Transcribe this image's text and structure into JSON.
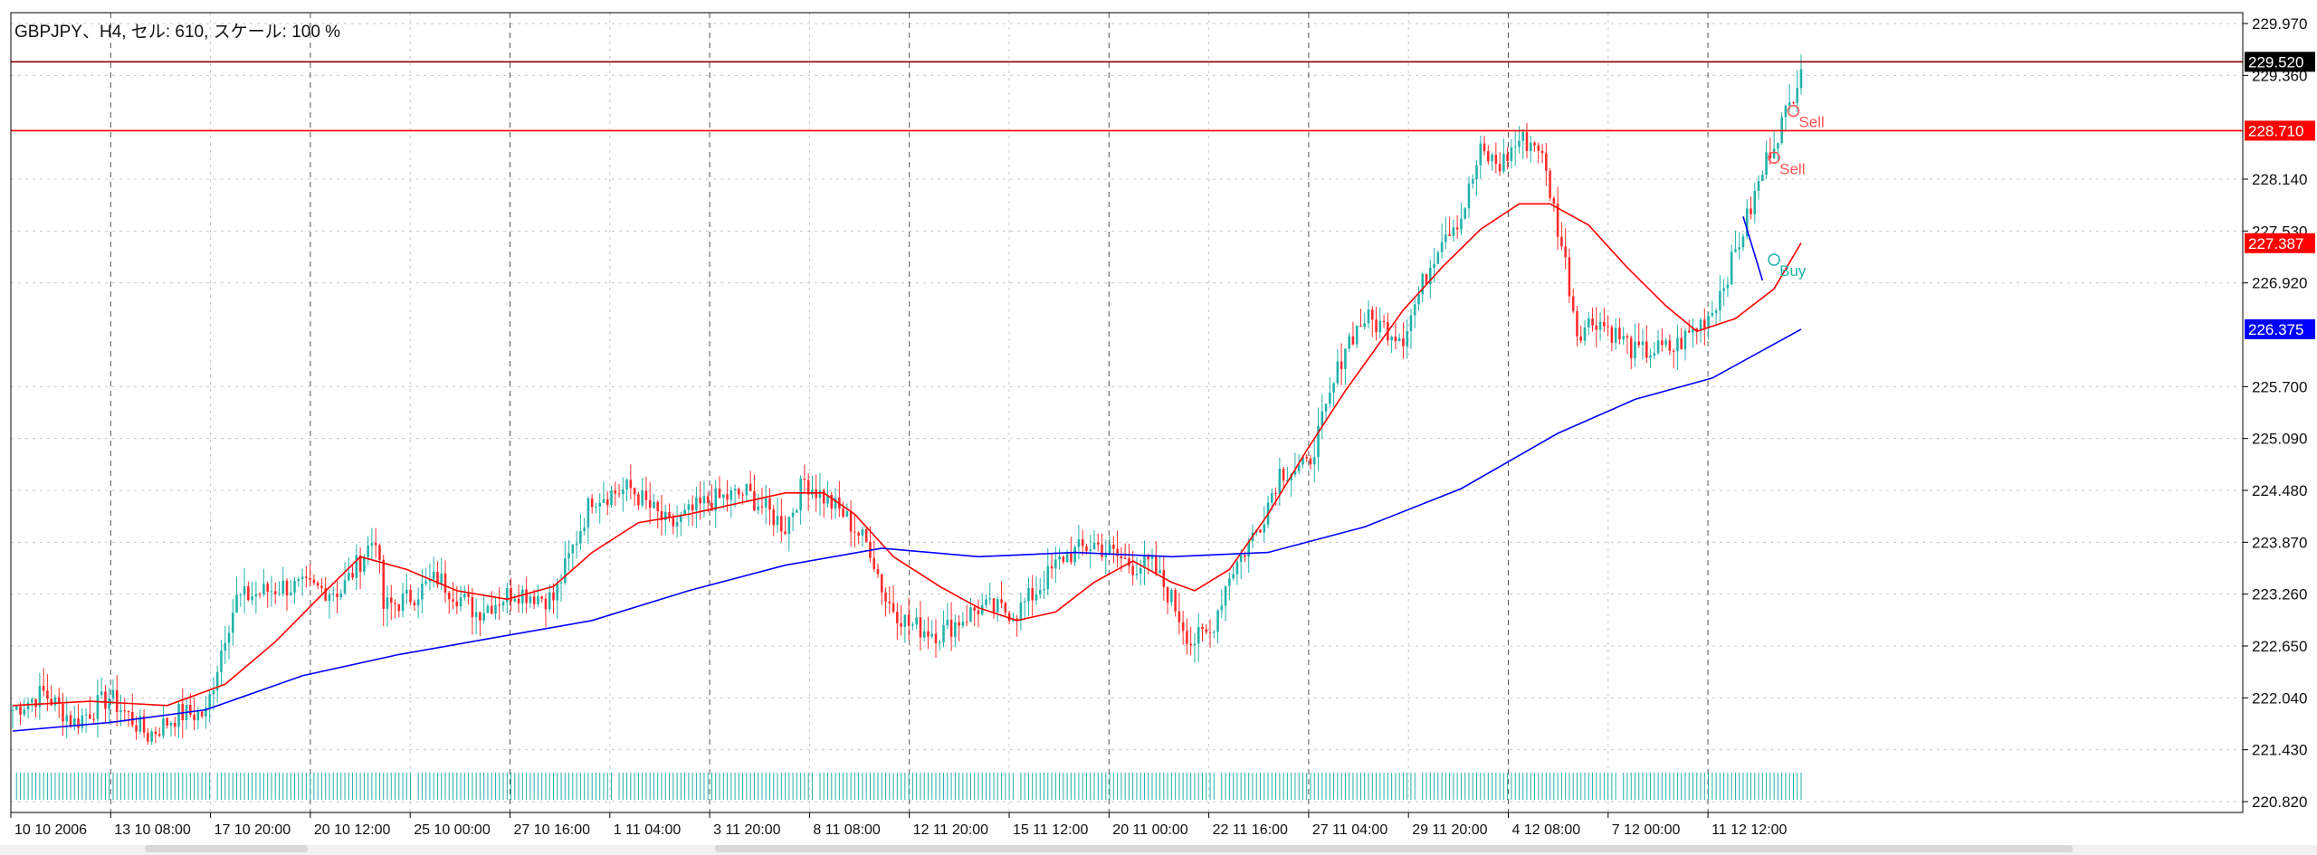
{
  "header": {
    "label": "GBPJPY、H4, セル: 610, スケール: 100 %"
  },
  "colors": {
    "bull": "#20b2aa",
    "bear": "#ff2a2a",
    "ma_fast": "#ff0000",
    "ma_slow": "#0000ff",
    "line_bid": "#8b0000",
    "line_ask": "#ff0000",
    "grid": "#c8c8c8",
    "volume": "#20b2aa",
    "sell_marker": "#ff5555",
    "buy_marker": "#20b2aa",
    "trend_line": "#0000ff"
  },
  "chart_data": {
    "type": "candlestick",
    "symbol": "GBPJPY",
    "timeframe": "H4",
    "ylim": [
      220.82,
      229.97
    ],
    "y_ticks": [
      "229.970",
      "229.360",
      "228.140",
      "227.530",
      "226.920",
      "225.700",
      "225.090",
      "224.480",
      "223.870",
      "223.260",
      "222.650",
      "222.040",
      "221.430",
      "220.820"
    ],
    "x_ticks": [
      "10 10 2006",
      "13 10 08:00",
      "17 10 20:00",
      "20 10 12:00",
      "25 10 00:00",
      "27 10 16:00",
      "1 11 04:00",
      "3 11 20:00",
      "8 11 08:00",
      "12 11 20:00",
      "15 11 12:00",
      "20 11 00:00",
      "22 11 16:00",
      "27 11 04:00",
      "29 11 20:00",
      "4 12 08:00",
      "7 12 00:00",
      "11 12 12:00"
    ],
    "price_labels": [
      {
        "value": 229.52,
        "text": "229.520",
        "bg": "#000000"
      },
      {
        "value": 228.71,
        "text": "228.710",
        "bg": "#ff0000"
      },
      {
        "value": 227.387,
        "text": "227.387",
        "bg": "#ff0000"
      },
      {
        "value": 226.375,
        "text": "226.375",
        "bg": "#0000ff"
      }
    ],
    "horizontal_lines": [
      {
        "value": 229.52,
        "color": "#8b0000"
      },
      {
        "value": 228.71,
        "color": "#ff0000"
      }
    ],
    "anchors": [
      [
        0,
        221.9
      ],
      [
        8,
        222.1
      ],
      [
        16,
        221.75
      ],
      [
        25,
        222.05
      ],
      [
        35,
        221.6
      ],
      [
        43,
        221.85
      ],
      [
        50,
        221.85
      ],
      [
        55,
        222.8
      ],
      [
        58,
        223.2
      ],
      [
        70,
        223.35
      ],
      [
        85,
        223.3
      ],
      [
        94,
        223.95
      ],
      [
        96,
        223.1
      ],
      [
        102,
        223.2
      ],
      [
        110,
        223.45
      ],
      [
        120,
        223.05
      ],
      [
        130,
        223.3
      ],
      [
        140,
        223.2
      ],
      [
        150,
        224.4
      ],
      [
        160,
        224.5
      ],
      [
        170,
        224.05
      ],
      [
        180,
        224.35
      ],
      [
        190,
        224.45
      ],
      [
        200,
        224.05
      ],
      [
        205,
        224.6
      ],
      [
        215,
        224.2
      ],
      [
        222,
        223.8
      ],
      [
        226,
        223.2
      ],
      [
        232,
        222.9
      ],
      [
        240,
        222.8
      ],
      [
        250,
        223.1
      ],
      [
        260,
        223.05
      ],
      [
        265,
        223.3
      ],
      [
        272,
        223.7
      ],
      [
        280,
        223.85
      ],
      [
        290,
        223.6
      ],
      [
        295,
        223.6
      ],
      [
        300,
        223.2
      ],
      [
        305,
        222.7
      ],
      [
        310,
        222.8
      ],
      [
        315,
        223.5
      ],
      [
        318,
        223.7
      ],
      [
        323,
        224.1
      ],
      [
        328,
        224.7
      ],
      [
        335,
        224.75
      ],
      [
        340,
        225.4
      ],
      [
        345,
        226.2
      ],
      [
        350,
        226.5
      ],
      [
        360,
        226.3
      ],
      [
        365,
        226.9
      ],
      [
        370,
        227.5
      ],
      [
        375,
        227.7
      ],
      [
        380,
        228.45
      ],
      [
        385,
        228.3
      ],
      [
        390,
        228.6
      ],
      [
        395,
        228.55
      ],
      [
        398,
        228.0
      ],
      [
        402,
        227.15
      ],
      [
        405,
        226.35
      ],
      [
        410,
        226.5
      ],
      [
        418,
        226.2
      ],
      [
        420,
        226.1
      ],
      [
        430,
        226.15
      ],
      [
        436,
        226.4
      ],
      [
        440,
        226.6
      ],
      [
        445,
        227.15
      ],
      [
        450,
        227.8
      ],
      [
        455,
        228.5
      ],
      [
        460,
        229.0
      ],
      [
        463,
        229.52
      ]
    ],
    "ma_fast_points": [
      [
        0,
        221.95
      ],
      [
        20,
        222.0
      ],
      [
        40,
        221.95
      ],
      [
        55,
        222.2
      ],
      [
        68,
        222.7
      ],
      [
        80,
        223.25
      ],
      [
        90,
        223.7
      ],
      [
        102,
        223.55
      ],
      [
        115,
        223.3
      ],
      [
        128,
        223.2
      ],
      [
        140,
        223.35
      ],
      [
        150,
        223.75
      ],
      [
        162,
        224.1
      ],
      [
        175,
        224.2
      ],
      [
        190,
        224.35
      ],
      [
        200,
        224.45
      ],
      [
        210,
        224.45
      ],
      [
        218,
        224.2
      ],
      [
        228,
        223.7
      ],
      [
        240,
        223.35
      ],
      [
        250,
        223.1
      ],
      [
        260,
        222.95
      ],
      [
        270,
        223.05
      ],
      [
        280,
        223.4
      ],
      [
        290,
        223.65
      ],
      [
        300,
        223.4
      ],
      [
        306,
        223.3
      ],
      [
        315,
        223.55
      ],
      [
        325,
        224.2
      ],
      [
        335,
        224.95
      ],
      [
        345,
        225.65
      ],
      [
        360,
        226.6
      ],
      [
        370,
        227.1
      ],
      [
        380,
        227.55
      ],
      [
        390,
        227.85
      ],
      [
        398,
        227.85
      ],
      [
        408,
        227.6
      ],
      [
        418,
        227.1
      ],
      [
        428,
        226.65
      ],
      [
        436,
        226.35
      ],
      [
        446,
        226.5
      ],
      [
        456,
        226.85
      ],
      [
        463,
        227.39
      ]
    ],
    "ma_slow_points": [
      [
        0,
        221.65
      ],
      [
        25,
        221.75
      ],
      [
        50,
        221.9
      ],
      [
        75,
        222.3
      ],
      [
        100,
        222.55
      ],
      [
        125,
        222.75
      ],
      [
        150,
        222.95
      ],
      [
        175,
        223.3
      ],
      [
        200,
        223.6
      ],
      [
        225,
        223.8
      ],
      [
        250,
        223.7
      ],
      [
        275,
        223.75
      ],
      [
        300,
        223.7
      ],
      [
        325,
        223.75
      ],
      [
        350,
        224.05
      ],
      [
        375,
        224.5
      ],
      [
        400,
        225.15
      ],
      [
        420,
        225.55
      ],
      [
        440,
        225.8
      ],
      [
        463,
        226.375
      ]
    ],
    "markers": [
      {
        "text": "Sell",
        "value": 228.35,
        "bar": 456
      },
      {
        "text": "Sell",
        "value": 228.9,
        "bar": 461
      },
      {
        "text": "Buy",
        "value": 227.15,
        "bar": 456
      }
    ],
    "trend_line": {
      "from_bar": 448,
      "from_value": 227.7,
      "to_bar": 453,
      "to_value": 226.95
    },
    "bars_count": 464
  }
}
